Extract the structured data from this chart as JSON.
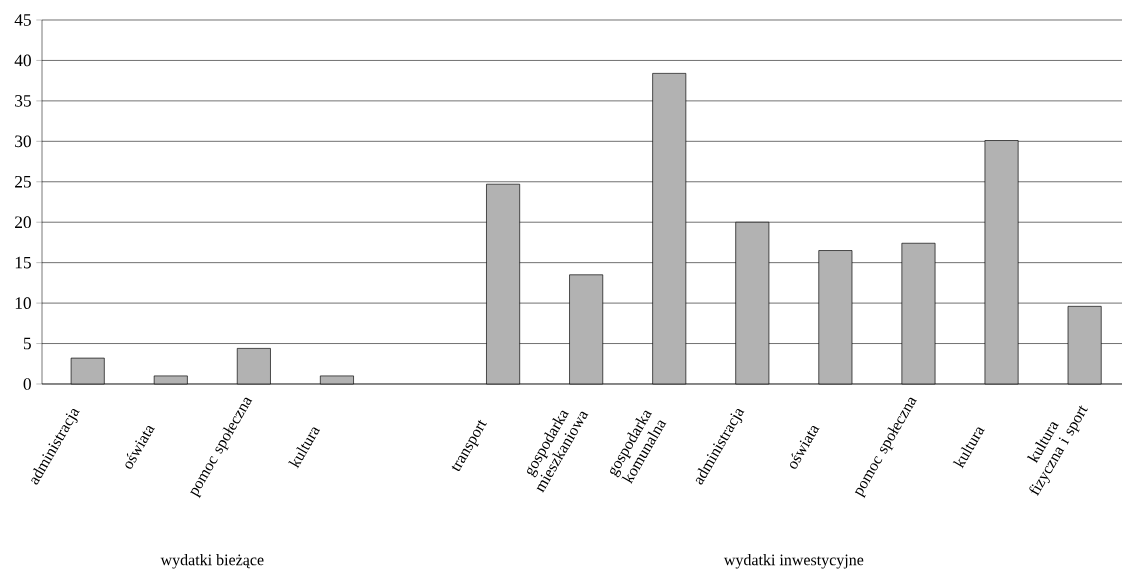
{
  "chart_data": {
    "type": "bar",
    "categories": [
      "administracja",
      "oświata",
      "pomoc społeczna",
      "kultura",
      null,
      "transport",
      "gospodarka mieszkaniowa",
      "gospodarka komunalna",
      "administracja",
      "oświata",
      "pomoc społeczna",
      "kultura",
      "kultura fizyczna i sport"
    ],
    "values": [
      3.2,
      1.0,
      4.4,
      1.0,
      null,
      24.7,
      13.5,
      38.4,
      20.0,
      16.5,
      17.4,
      30.1,
      9.6
    ],
    "color": "#b2b2b2",
    "ylim": [
      0,
      45
    ],
    "yticks": [
      0,
      5,
      10,
      15,
      20,
      25,
      30,
      35,
      40,
      45
    ],
    "grid": "y",
    "annotations": [
      "wydatki bieżące",
      "wydatki inwestycyjne"
    ]
  }
}
